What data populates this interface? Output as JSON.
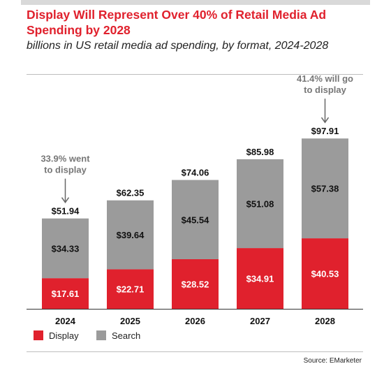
{
  "title": "Display Will Represent Over 40% of Retail Media Ad Spending by 2028",
  "subtitle": "billions in US retail media ad spending, by format, 2024-2028",
  "source": "Source: EMarketer",
  "colors": {
    "display": "#e0212d",
    "search": "#9b9b9b",
    "title": "#e0212d"
  },
  "chart_data": {
    "type": "bar",
    "stacked": true,
    "categories": [
      "2024",
      "2025",
      "2026",
      "2027",
      "2028"
    ],
    "series": [
      {
        "name": "Display",
        "values": [
          17.61,
          22.71,
          28.52,
          34.91,
          40.53
        ],
        "labels": [
          "$17.61",
          "$22.71",
          "$28.52",
          "$34.91",
          "$40.53"
        ]
      },
      {
        "name": "Search",
        "values": [
          34.33,
          39.64,
          45.54,
          51.08,
          57.38
        ],
        "labels": [
          "$34.33",
          "$39.64",
          "$45.54",
          "$51.08",
          "$57.38"
        ]
      }
    ],
    "totals": [
      51.94,
      62.35,
      74.06,
      85.98,
      97.91
    ],
    "total_labels": [
      "$51.94",
      "$62.35",
      "$74.06",
      "$85.98",
      "$97.91"
    ],
    "annotations": [
      {
        "category": "2024",
        "lines": [
          "33.9% went",
          "to display"
        ]
      },
      {
        "category": "2028",
        "lines": [
          "41.4% will go",
          "to display"
        ]
      }
    ],
    "legend_placement": "bottom-left",
    "grid": false
  }
}
